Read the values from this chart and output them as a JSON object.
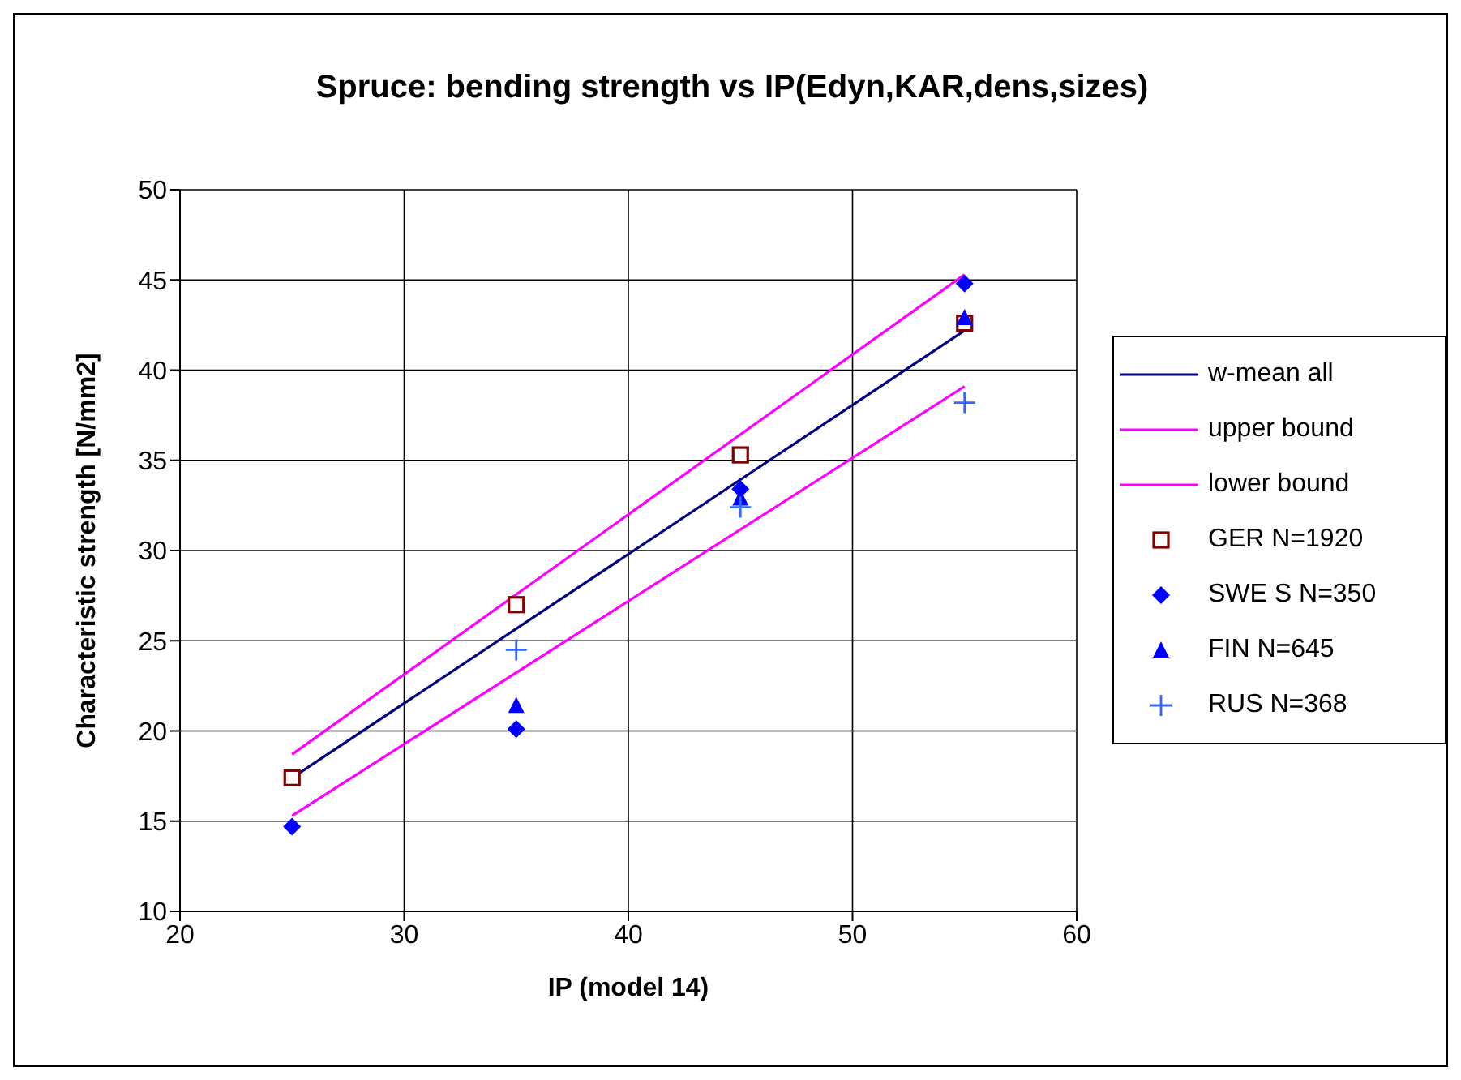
{
  "chart_data": {
    "type": "scatter",
    "title": "Spruce: bending strength vs IP(Edyn,KAR,dens,sizes)",
    "xlabel": "IP (model 14)",
    "ylabel": "Characteristic strength [N/mm2]",
    "xlim": [
      20,
      60
    ],
    "xticks": [
      20,
      30,
      40,
      50,
      60
    ],
    "ylim": [
      10,
      50
    ],
    "yticks": [
      10,
      15,
      20,
      25,
      30,
      35,
      40,
      45,
      50
    ],
    "grid": true,
    "legend": "right",
    "series": [
      {
        "name": "w-mean all",
        "type": "line",
        "color": "#000080",
        "line_style": "solid",
        "marker": "none",
        "x": [
          25,
          55
        ],
        "values": [
          17.4,
          42.2
        ]
      },
      {
        "name": "upper bound",
        "type": "line",
        "color": "#ff00ff",
        "line_style": "solid",
        "marker": "none",
        "x": [
          25,
          55
        ],
        "values": [
          18.7,
          45.3
        ]
      },
      {
        "name": "lower bound",
        "type": "line",
        "color": "#ff00ff",
        "line_style": "solid",
        "marker": "none",
        "x": [
          25,
          55
        ],
        "values": [
          15.3,
          39.1
        ]
      },
      {
        "name": "GER N=1920",
        "color": "#800000",
        "marker": "square",
        "x": [
          25,
          35,
          45,
          55
        ],
        "values": [
          17.4,
          27.0,
          35.3,
          42.6
        ]
      },
      {
        "name": "SWE S N=350",
        "color": "#0000ff",
        "marker": "diamond",
        "x": [
          25,
          35,
          45,
          55
        ],
        "values": [
          14.7,
          20.1,
          33.4,
          44.8
        ]
      },
      {
        "name": "FIN N=645",
        "color": "#0000ff",
        "marker": "triangle",
        "x": [
          35,
          45,
          55
        ],
        "values": [
          21.4,
          32.9,
          42.9
        ]
      },
      {
        "name": "RUS N=368",
        "color": "#3366ff",
        "marker": "cross",
        "x": [
          35,
          45,
          55
        ],
        "values": [
          24.5,
          32.4,
          38.2
        ]
      }
    ]
  }
}
